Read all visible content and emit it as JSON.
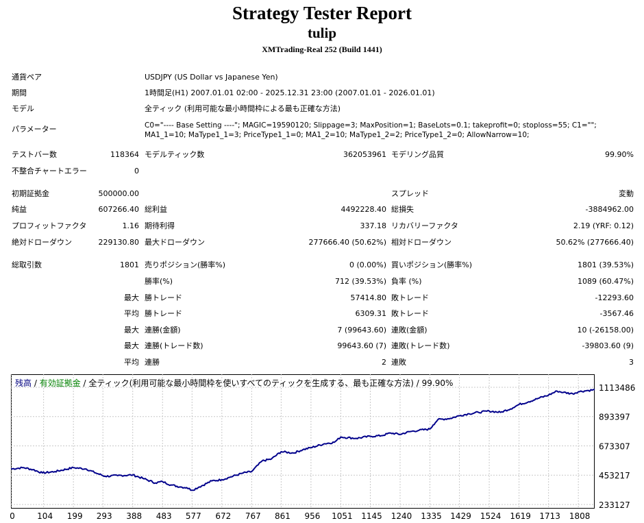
{
  "header": {
    "title": "Strategy Tester Report",
    "subtitle": "tulip",
    "server": "XMTrading-Real 252 (Build 1441)"
  },
  "info": {
    "symbol_label": "通貨ペア",
    "symbol_value": "USDJPY (US Dollar vs Japanese Yen)",
    "period_label": "期間",
    "period_value": "1時間足(H1) 2007.01.01 02:00 - 2025.12.31 23:00 (2007.01.01 - 2026.01.01)",
    "model_label": "モデル",
    "model_value": "全ティック (利用可能な最小時間枠による最も正確な方法)",
    "params_label": "パラメーター",
    "params_line1": "C0=\"---- Base Setting ----\"; MAGIC=19590120; Slippage=3; MaxPosition=1; BaseLots=0.1; takeprofit=0; stoploss=55; C1=\"\";",
    "params_line2": "MA1_1=10; MaType1_1=3; PriceType1_1=0; MA1_2=10; MaType1_2=2; PriceType1_2=0; AllowNarrow=10;"
  },
  "stats": {
    "bars_label": "テストバー数",
    "bars_value": "118364",
    "ticks_label": "モデルティック数",
    "ticks_value": "362053961",
    "quality_label": "モデリング品質",
    "quality_value": "99.90%",
    "mismatch_label": "不整合チャートエラー",
    "mismatch_value": "0",
    "deposit_label": "初期証拠金",
    "deposit_value": "500000.00",
    "spread_label": "スプレッド",
    "spread_value": "変動",
    "net_label": "純益",
    "net_value": "607266.40",
    "gross_profit_label": "総利益",
    "gross_profit_value": "4492228.40",
    "gross_loss_label": "総損失",
    "gross_loss_value": "-3884962.00",
    "pf_label": "プロフィットファクタ",
    "pf_value": "1.16",
    "payoff_label": "期待利得",
    "payoff_value": "337.18",
    "recovery_label": "リカバリーファクタ",
    "recovery_value": "2.19 (YRF: 0.12)",
    "abs_dd_label": "絶対ドローダウン",
    "abs_dd_value": "229130.80",
    "max_dd_label": "最大ドローダウン",
    "max_dd_value": "277666.40 (50.62%)",
    "rel_dd_label": "相対ドローダウン",
    "rel_dd_value": "50.62% (277666.40)",
    "trades_label": "総取引数",
    "trades_value": "1801",
    "short_label": "売りポジション(勝率%)",
    "short_value": "0 (0.00%)",
    "long_label": "買いポジション(勝率%)",
    "long_value": "1801 (39.53%)",
    "winrate_label": "勝率(%)",
    "winrate_value": "712 (39.53%)",
    "lossrate_label": "負率 (%)",
    "lossrate_value": "1089 (60.47%)",
    "largest_prefix": "最大",
    "largest_win_label": "勝トレード",
    "largest_win_value": "57414.80",
    "largest_loss_label": "敗トレード",
    "largest_loss_value": "-12293.60",
    "avg_prefix": "平均",
    "avg_win_label": "勝トレード",
    "avg_win_value": "6309.31",
    "avg_loss_label": "敗トレード",
    "avg_loss_value": "-3567.46",
    "max_prefix1": "最大",
    "cons_wins_label": "連勝(金額)",
    "cons_wins_value": "7 (99643.60)",
    "cons_losses_label": "連敗(金額)",
    "cons_losses_value": "10 (-26158.00)",
    "max_prefix2": "最大",
    "cons_profit_label": "連勝(トレード数)",
    "cons_profit_value": "99643.60 (7)",
    "cons_loss_label": "連敗(トレード数)",
    "cons_loss_value": "-39803.60 (9)",
    "avg_prefix2": "平均",
    "avg_cons_wins_label": "連勝",
    "avg_cons_wins_value": "2",
    "avg_cons_losses_label": "連敗",
    "avg_cons_losses_value": "3"
  },
  "legend": {
    "balance": "残高",
    "sep1": " / ",
    "equity": "有効証拠金",
    "sep2": " / ",
    "model": "全ティック(利用可能な最小時間枠を使いすべてのティックを生成する、最も正確な方法) / 99.90%"
  },
  "colors": {
    "balance": "#000080",
    "equity": "#008000",
    "line": "#00008b",
    "grid": "#c8c8c8"
  },
  "chart_data": {
    "type": "line",
    "title": "",
    "xlabel": "",
    "ylabel": "",
    "x_ticks": [
      "0",
      "104",
      "199",
      "293",
      "388",
      "483",
      "577",
      "672",
      "767",
      "861",
      "956",
      "1051",
      "1145",
      "1240",
      "1335",
      "1429",
      "1524",
      "1619",
      "1713",
      "1808"
    ],
    "y_ticks": [
      "1113486",
      "893397",
      "673307",
      "453217",
      "233127"
    ],
    "xlim": [
      0,
      1860
    ],
    "ylim": [
      233127,
      1113486
    ],
    "grid": true,
    "series": [
      {
        "color": "#00008b",
        "x": [
          0,
          40,
          70,
          100,
          140,
          199,
          240,
          270,
          300,
          340,
          388,
          420,
          460,
          483,
          510,
          540,
          560,
          577,
          600,
          640,
          672,
          700,
          740,
          767,
          800,
          830,
          861,
          900,
          930,
          956,
          1000,
          1030,
          1051,
          1100,
          1145,
          1180,
          1210,
          1240,
          1270,
          1300,
          1335,
          1345,
          1360,
          1400,
          1429,
          1460,
          1490,
          1524,
          1560,
          1600,
          1619,
          1650,
          1680,
          1713,
          1740,
          1760,
          1790,
          1808,
          1840,
          1860
        ],
        "y": [
          500000,
          510000,
          495000,
          470000,
          480000,
          510000,
          500000,
          470000,
          445000,
          450000,
          455000,
          430000,
          395000,
          405000,
          380000,
          365000,
          360000,
          340000,
          365000,
          410000,
          420000,
          440000,
          470000,
          480000,
          560000,
          575000,
          630000,
          620000,
          645000,
          660000,
          690000,
          700000,
          740000,
          730000,
          745000,
          750000,
          770000,
          760000,
          780000,
          790000,
          800000,
          830000,
          870000,
          880000,
          900000,
          915000,
          925000,
          935000,
          925000,
          960000,
          985000,
          1005000,
          1030000,
          1055000,
          1085000,
          1075000,
          1065000,
          1080000,
          1090000,
          1095000
        ]
      }
    ]
  }
}
